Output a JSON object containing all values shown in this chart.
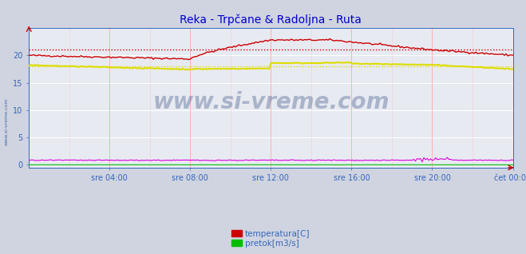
{
  "title": "Reka - Trpčane & Radoljna - Ruta",
  "title_color": "#0000cc",
  "bg_color": "#d0d4e0",
  "plot_bg_color": "#e8eaf2",
  "grid_color_major": "#ffffff",
  "grid_color_minor": "#ffaaaa",
  "xlim": [
    0,
    288
  ],
  "ylim": [
    -0.5,
    25
  ],
  "yticks": [
    0,
    5,
    10,
    15,
    20
  ],
  "xtick_labels": [
    "sre 04:00",
    "sre 08:00",
    "sre 12:00",
    "sre 16:00",
    "sre 20:00",
    "čet 00:00"
  ],
  "xtick_positions": [
    48,
    96,
    144,
    192,
    240,
    288
  ],
  "watermark": "www.si-vreme.com",
  "side_label": "www.si-vreme.com",
  "legend_groups": [
    [
      {
        "label": "temperatura[C]",
        "color": "#cc0000"
      },
      {
        "label": "pretok[m3/s]",
        "color": "#00bb00"
      }
    ],
    [
      {
        "label": "temperatura[C]",
        "color": "#dddd00"
      },
      {
        "label": "pretok[m3/s]",
        "color": "#dd00dd"
      }
    ]
  ],
  "reka_temp_start": 20.0,
  "reka_temp_min": 19.3,
  "reka_temp_peak": 22.8,
  "reka_temp_end": 20.0,
  "reka_temp_avg": 21.0,
  "radoljna_temp_start": 18.2,
  "radoljna_temp_min": 17.5,
  "radoljna_temp_peak": 18.6,
  "radoljna_temp_end": 17.5,
  "radoljna_temp_avg": 18.0,
  "reka_pretok_val": 0.02,
  "radoljna_pretok_val": 0.85,
  "n_points": 289
}
